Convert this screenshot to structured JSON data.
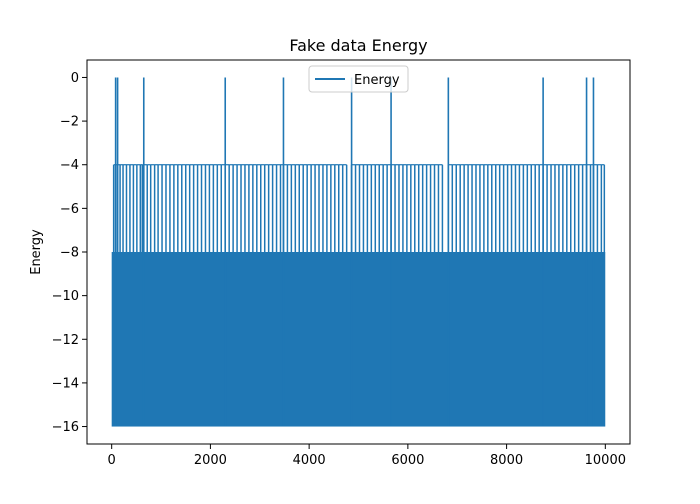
{
  "chart_data": {
    "type": "line",
    "title": "Fake data Energy",
    "xlabel": "",
    "ylabel": "Energy",
    "xlim": [
      -500,
      10500
    ],
    "ylim": [
      -16.8,
      0.8
    ],
    "xticks": [
      0,
      2000,
      4000,
      6000,
      8000,
      10000
    ],
    "yticks": [
      0,
      -2,
      -4,
      -6,
      -8,
      -10,
      -12,
      -14,
      -16
    ],
    "ytick_labels": [
      "0",
      "−2",
      "−4",
      "−6",
      "−8",
      "−10",
      "−12",
      "−14",
      "−16"
    ],
    "legend": {
      "position": "upper center",
      "entries": [
        "Energy"
      ]
    },
    "series": [
      {
        "name": "Energy",
        "color": "#1f77b4",
        "n_points": 10000,
        "x_range": [
          0,
          9999
        ],
        "discrete_levels": [
          0,
          -4,
          -8,
          -12,
          -16
        ],
        "band_fill_between": [
          -16,
          -8
        ],
        "zero_spikes_x": [
          80,
          120,
          650,
          2300,
          3480,
          4860,
          5660,
          6820,
          8740,
          9620,
          9760
        ],
        "level_minus4_x": [
          40,
          80,
          120,
          170,
          230,
          300,
          370,
          440,
          510,
          580,
          620,
          650,
          720,
          790,
          870,
          940,
          1020,
          1100,
          1180,
          1260,
          1340,
          1420,
          1500,
          1580,
          1660,
          1740,
          1820,
          1900,
          1980,
          2060,
          2140,
          2220,
          2300,
          2380,
          2460,
          2540,
          2620,
          2700,
          2780,
          2860,
          2940,
          3020,
          3100,
          3180,
          3260,
          3340,
          3420,
          3480,
          3560,
          3640,
          3720,
          3800,
          3880,
          3960,
          4040,
          4120,
          4200,
          4280,
          4360,
          4440,
          4520,
          4600,
          4680,
          4760,
          4860,
          4940,
          5020,
          5100,
          5180,
          5260,
          5340,
          5420,
          5500,
          5580,
          5660,
          5740,
          5820,
          5900,
          5980,
          6060,
          6140,
          6220,
          6300,
          6380,
          6460,
          6540,
          6620,
          6700,
          6820,
          6900,
          6980,
          7060,
          7140,
          7220,
          7300,
          7380,
          7460,
          7540,
          7620,
          7700,
          7780,
          7860,
          7940,
          8020,
          8100,
          8180,
          8260,
          8340,
          8420,
          8500,
          8580,
          8660,
          8740,
          8820,
          8900,
          8980,
          9060,
          9140,
          9220,
          9300,
          9380,
          9460,
          9540,
          9620,
          9700,
          9760,
          9840,
          9920,
          9980
        ]
      }
    ]
  }
}
